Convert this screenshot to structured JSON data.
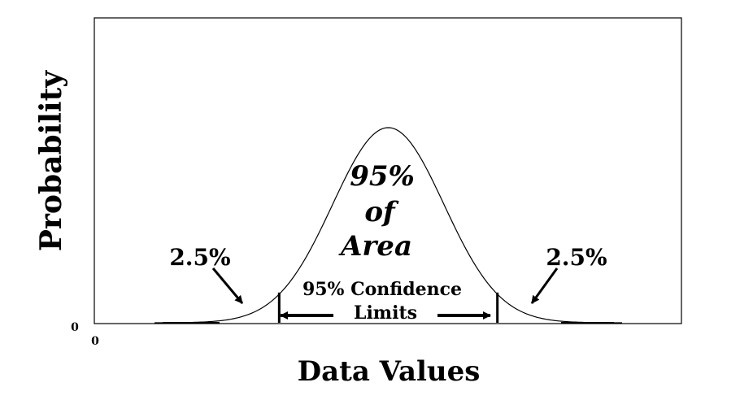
{
  "chart_data": {
    "type": "line",
    "title": "",
    "xlabel": "Data Values",
    "ylabel": "Probability",
    "x_origin_label": "0",
    "y_origin_label": "0",
    "curve": "normal distribution",
    "xlim": [
      -4.2,
      4.2
    ],
    "mu": 0,
    "sigma": 1,
    "confidence_limits": [
      -1.96,
      1.96
    ],
    "area_label_lines": [
      "95%",
      "of",
      "Area"
    ],
    "left_tail_label": "2.5%",
    "right_tail_label": "2.5%",
    "limits_label_lines": [
      "95% Confidence",
      "Limits"
    ],
    "grid": false,
    "legend": "none"
  }
}
